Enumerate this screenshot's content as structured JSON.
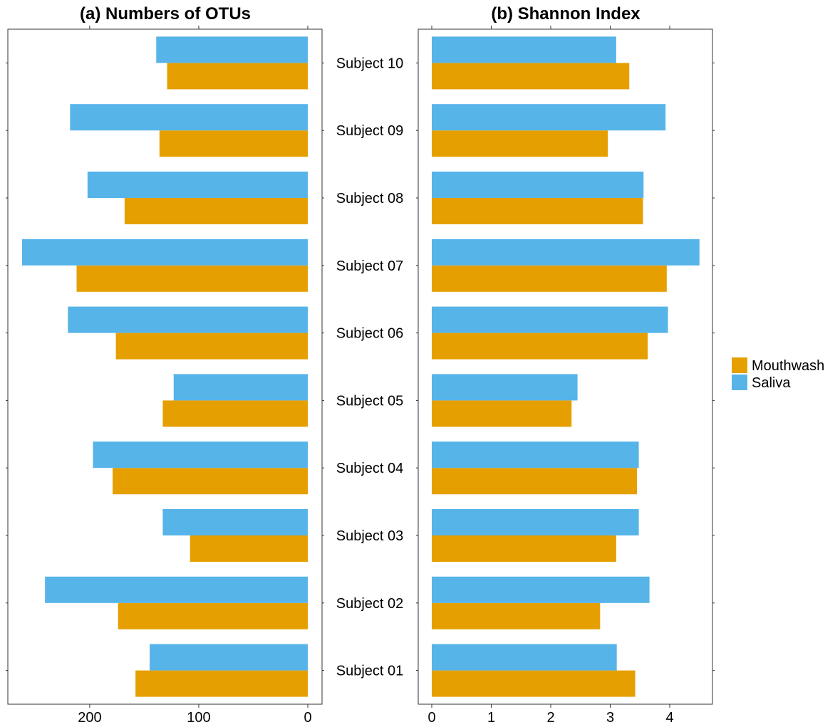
{
  "colors": {
    "mouthwash": "#E69F00",
    "saliva": "#56B4E9"
  },
  "legend": {
    "items": [
      "Mouthwash",
      "Saliva"
    ],
    "placement": "right"
  },
  "chart_data": [
    {
      "type": "bar",
      "orientation": "horizontal",
      "title": "(a) Numbers of OTUs",
      "x_reversed": true,
      "categories": [
        "Subject 01",
        "Subject 02",
        "Subject 03",
        "Subject 04",
        "Subject 05",
        "Subject 06",
        "Subject 07",
        "Subject 08",
        "Subject 09",
        "Subject 10"
      ],
      "xlim": [
        0,
        273
      ],
      "xticks": [
        0,
        100,
        200
      ],
      "grid": false,
      "series": [
        {
          "name": "Mouthwash",
          "values": [
            158,
            174,
            108,
            179,
            133,
            176,
            212,
            168,
            136,
            129
          ]
        },
        {
          "name": "Saliva",
          "values": [
            145,
            241,
            133,
            197,
            123,
            220,
            262,
            202,
            218,
            139
          ]
        }
      ]
    },
    {
      "type": "bar",
      "orientation": "horizontal",
      "title": "(b) Shannon Index",
      "categories": [
        "Subject 01",
        "Subject 02",
        "Subject 03",
        "Subject 04",
        "Subject 05",
        "Subject 06",
        "Subject 07",
        "Subject 08",
        "Subject 09",
        "Subject 10"
      ],
      "xlim": [
        0,
        4.7
      ],
      "xticks": [
        0,
        1,
        2,
        3,
        4
      ],
      "grid": false,
      "series": [
        {
          "name": "Mouthwash",
          "values": [
            3.42,
            2.83,
            3.1,
            3.45,
            2.35,
            3.63,
            3.95,
            3.55,
            2.96,
            3.32
          ]
        },
        {
          "name": "Saliva",
          "values": [
            3.11,
            3.66,
            3.48,
            3.48,
            2.45,
            3.97,
            4.5,
            3.56,
            3.93,
            3.1
          ]
        }
      ]
    }
  ]
}
